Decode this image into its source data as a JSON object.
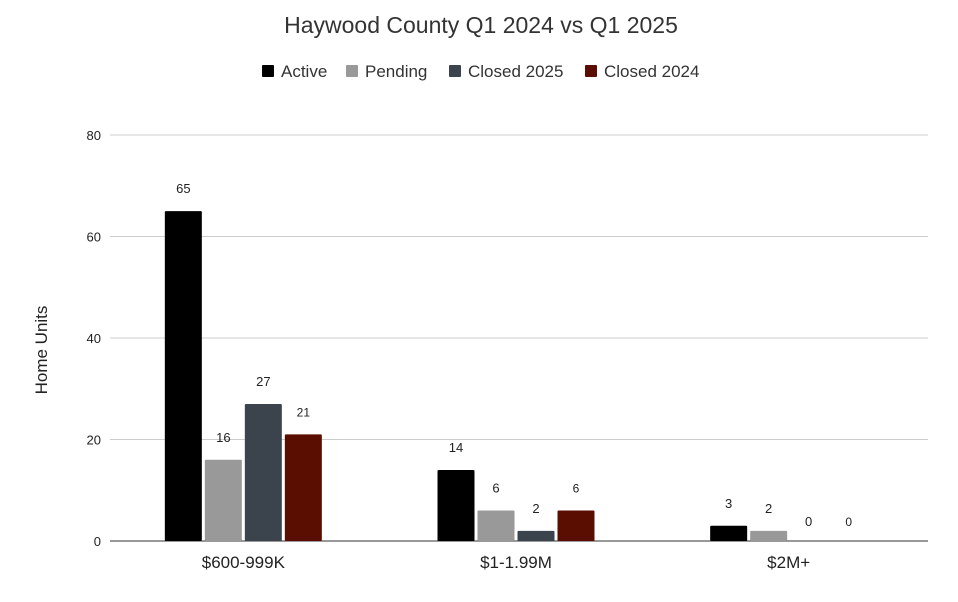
{
  "chart_data": {
    "type": "bar",
    "title": "Haywood County Q1 2024 vs Q1 2025",
    "xlabel": "",
    "ylabel": "Home Units",
    "ylim": [
      0,
      80
    ],
    "yticks": [
      "0",
      "20",
      "40",
      "60",
      "80"
    ],
    "categories": [
      "$600-999K",
      "$1-1.99M",
      "$2M+"
    ],
    "legend_position": "top",
    "series": [
      {
        "name": "Active",
        "color": "#000000",
        "values": [
          65,
          14,
          3
        ],
        "labels": [
          "65",
          "14",
          "3"
        ]
      },
      {
        "name": "Pending",
        "color": "#999999",
        "values": [
          16,
          6,
          2
        ],
        "labels": [
          "16",
          "6",
          "2"
        ]
      },
      {
        "name": "Closed 2025",
        "color": "#3b444c",
        "values": [
          27,
          2,
          0
        ],
        "labels": [
          "27",
          "2",
          "0"
        ]
      },
      {
        "name": "Closed 2024",
        "color": "#5a0e02",
        "values": [
          21,
          6,
          0
        ],
        "labels": [
          "21",
          "6",
          "0"
        ]
      }
    ]
  }
}
